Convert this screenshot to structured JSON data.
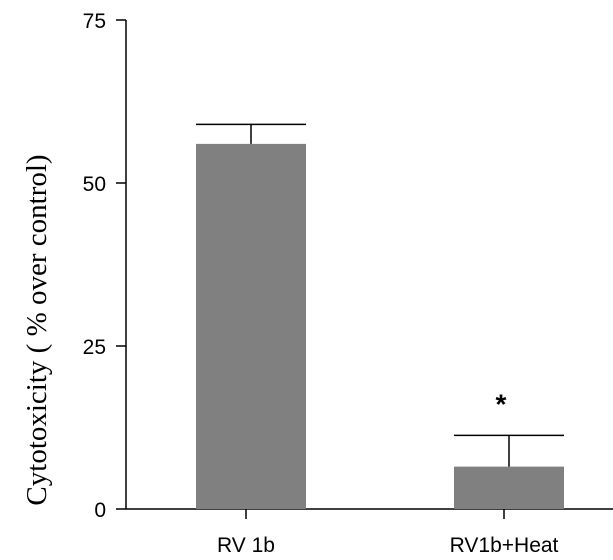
{
  "chart_data": {
    "type": "bar",
    "categories": [
      "RV 1b",
      "RV1b+Heat"
    ],
    "values": [
      56,
      6.5
    ],
    "errors": [
      3,
      4.8
    ],
    "annotations": [
      "",
      "*"
    ],
    "title": "",
    "xlabel": "",
    "ylabel": "Cytotoxicity  ( % over control)",
    "ylim": [
      0,
      75
    ],
    "yticks": [
      0,
      25,
      50,
      75
    ],
    "grid": false,
    "bar_color": "#808080"
  }
}
